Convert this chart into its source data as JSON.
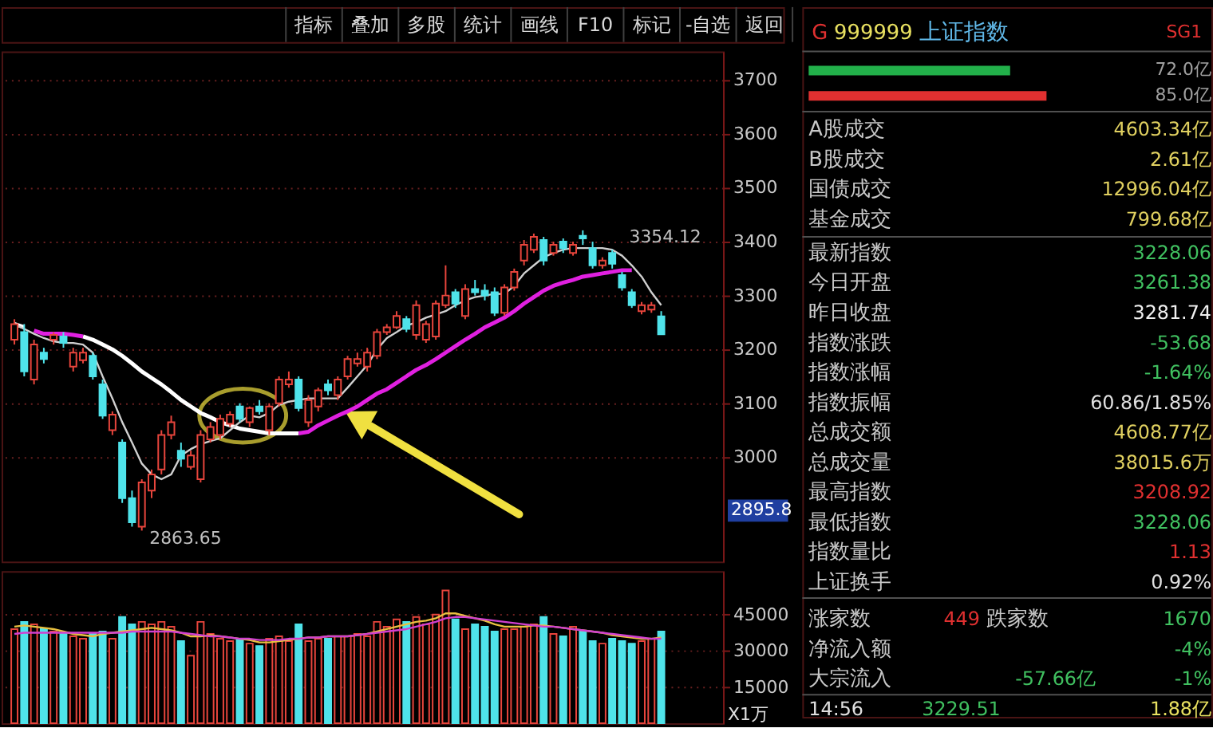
{
  "chart_data": [
    {
      "type": "other",
      "categories": [
        "指标",
        "叠加",
        "多股",
        "统计",
        "画线",
        "F10",
        "标记",
        "-自选",
        "返回"
      ]
    },
    {
      "type": "candlestick",
      "categories": [
        null,
        null,
        null,
        null,
        null,
        null,
        null,
        null,
        null,
        null,
        null,
        null,
        null,
        null,
        null,
        null,
        null,
        null,
        null,
        null,
        null,
        null,
        null,
        null,
        null,
        null,
        null,
        null,
        null,
        null,
        null,
        null,
        null,
        null,
        null,
        null,
        null,
        null,
        null,
        null,
        null,
        null,
        null,
        null,
        null,
        null,
        null,
        null,
        null,
        null,
        null,
        null,
        null,
        null,
        null,
        null,
        null,
        null,
        null,
        null,
        null,
        null,
        null,
        null,
        null,
        null,
        null
      ],
      "ohlc": [
        [
          3218,
          3256,
          3209,
          3247
        ],
        [
          3232,
          3247,
          3150,
          3159
        ],
        [
          3144,
          3218,
          3135,
          3209
        ],
        [
          3194,
          3203,
          3174,
          3182
        ],
        [
          3218,
          3232,
          3209,
          3227
        ],
        [
          3224,
          3232,
          3203,
          3212
        ],
        [
          3168,
          3203,
          3159,
          3194
        ],
        [
          3180,
          3203,
          3174,
          3194
        ],
        [
          3188,
          3194,
          3144,
          3150
        ],
        [
          3135,
          3144,
          3071,
          3077
        ],
        [
          3050,
          3085,
          3041,
          3079
        ],
        [
          3027,
          3033,
          2915,
          2924
        ],
        [
          2924,
          2938,
          2871,
          2879
        ],
        [
          2871,
          2959,
          2863.65,
          2953
        ],
        [
          2938,
          2977,
          2924,
          2968
        ],
        [
          2977,
          3050,
          2968,
          3041
        ],
        [
          3041,
          3077,
          3033,
          3065
        ],
        [
          3012,
          3027,
          2982,
          2997
        ],
        [
          2982,
          3012,
          2977,
          3003
        ],
        [
          2959,
          3050,
          2953,
          3041
        ],
        [
          3033,
          3065,
          3027,
          3056
        ],
        [
          3041,
          3079,
          3033,
          3071
        ],
        [
          3062,
          3085,
          3056,
          3079
        ],
        [
          3094,
          3100,
          3065,
          3071
        ],
        [
          3065,
          3094,
          3056,
          3091
        ],
        [
          3094,
          3106,
          3079,
          3085
        ],
        [
          3050,
          3100,
          3041,
          3094
        ],
        [
          3100,
          3150,
          3094,
          3144
        ],
        [
          3135,
          3159,
          3129,
          3144
        ],
        [
          3144,
          3150,
          3085,
          3091
        ],
        [
          3065,
          3115,
          3056,
          3106
        ],
        [
          3094,
          3129,
          3085,
          3124
        ],
        [
          3135,
          3144,
          3115,
          3124
        ],
        [
          3115,
          3150,
          3106,
          3144
        ],
        [
          3150,
          3188,
          3144,
          3182
        ],
        [
          3174,
          3194,
          3168,
          3182
        ],
        [
          3168,
          3203,
          3159,
          3194
        ],
        [
          3188,
          3238,
          3182,
          3232
        ],
        [
          3232,
          3247,
          3227,
          3241
        ],
        [
          3241,
          3271,
          3238,
          3262
        ],
        [
          3256,
          3262,
          3232,
          3238
        ],
        [
          3227,
          3291,
          3218,
          3282
        ],
        [
          3218,
          3253,
          3212,
          3247
        ],
        [
          3224,
          3291,
          3218,
          3285
        ],
        [
          3282,
          3356,
          3277,
          3300
        ],
        [
          3306,
          3312,
          3277,
          3285
        ],
        [
          3262,
          3321,
          3256,
          3312
        ],
        [
          3312,
          3329,
          3300,
          3306
        ],
        [
          3309,
          3321,
          3291,
          3300
        ],
        [
          3306,
          3315,
          3262,
          3268
        ],
        [
          3268,
          3321,
          3262,
          3315
        ],
        [
          3315,
          3350,
          3309,
          3344
        ],
        [
          3365,
          3403,
          3356,
          3394
        ],
        [
          3385,
          3415,
          3379,
          3409
        ],
        [
          3403,
          3409,
          3356,
          3365
        ],
        [
          3379,
          3400,
          3374,
          3394
        ],
        [
          3400,
          3406,
          3379,
          3388
        ],
        [
          3379,
          3400,
          3374,
          3394
        ],
        [
          3411,
          3421,
          3394,
          3406
        ],
        [
          3388,
          3400,
          3350,
          3356
        ],
        [
          3356,
          3371,
          3350,
          3365
        ],
        [
          3379,
          3385,
          3350,
          3359
        ],
        [
          3338,
          3344,
          3309,
          3315
        ],
        [
          3306,
          3312,
          3277,
          3282
        ],
        [
          3271,
          3288,
          3265,
          3282
        ],
        [
          3274,
          3288,
          3268,
          3282
        ],
        [
          3261.38,
          3271,
          3228.06,
          3228.06
        ]
      ],
      "colors": [
        "#e8453c",
        "#4fe3ea",
        "#e8453c",
        "#4fe3ea",
        "#e8453c",
        "#4fe3ea",
        "#e8453c",
        "#e8453c",
        "#4fe3ea",
        "#4fe3ea",
        "#e8453c",
        "#4fe3ea",
        "#4fe3ea",
        "#e8453c",
        "#e8453c",
        "#e8453c",
        "#e8453c",
        "#4fe3ea",
        "#e8453c",
        "#e8453c",
        "#e8453c",
        "#e8453c",
        "#e8453c",
        "#4fe3ea",
        "#e8453c",
        "#4fe3ea",
        "#e8453c",
        "#e8453c",
        "#e8453c",
        "#4fe3ea",
        "#e8453c",
        "#e8453c",
        "#4fe3ea",
        "#e8453c",
        "#e8453c",
        "#e8453c",
        "#e8453c",
        "#e8453c",
        "#e8453c",
        "#e8453c",
        "#4fe3ea",
        "#e8453c",
        "#e8453c",
        "#e8453c",
        "#e8453c",
        "#4fe3ea",
        "#e8453c",
        "#4fe3ea",
        "#4fe3ea",
        "#4fe3ea",
        "#e8453c",
        "#e8453c",
        "#e8453c",
        "#e8453c",
        "#4fe3ea",
        "#e8453c",
        "#4fe3ea",
        "#e8453c",
        "#4fe3ea",
        "#4fe3ea",
        "#e8453c",
        "#4fe3ea",
        "#4fe3ea",
        "#4fe3ea",
        "#e8453c",
        "#e8453c",
        "#4fe3ea"
      ],
      "series": [
        {
          "type": "line",
          "color": "#ffffff",
          "values": [
            3247,
            3241,
            null,
            null,
            null,
            null,
            null,
            3224,
            3218,
            3209,
            3200,
            3188,
            3174,
            3159,
            3147,
            3135,
            3121,
            3106,
            3094,
            3082,
            3074,
            3065,
            3059,
            3053,
            3050,
            3047,
            3044,
            3044,
            3044,
            3044,
            null,
            null,
            null,
            null,
            null,
            null,
            null,
            null,
            null,
            null,
            null,
            null,
            null,
            null,
            null,
            null,
            null,
            null,
            null,
            null,
            null,
            null,
            null,
            null,
            null,
            null,
            null,
            null,
            null,
            null,
            null,
            null,
            null,
            null,
            null,
            null,
            null
          ]
        },
        {
          "type": "line",
          "color": "#e020e0",
          "values": [
            null,
            null,
            3235,
            3229,
            3229,
            3229,
            3227,
            3224,
            null,
            null,
            null,
            null,
            null,
            null,
            null,
            null,
            null,
            null,
            null,
            null,
            null,
            null,
            null,
            null,
            null,
            null,
            null,
            null,
            null,
            3044,
            3047,
            3059,
            3068,
            3077,
            3085,
            3094,
            3106,
            3118,
            3126,
            3138,
            3150,
            3162,
            3171,
            3182,
            3194,
            3206,
            3218,
            3229,
            3241,
            3250,
            3259,
            3271,
            3285,
            3297,
            3309,
            3318,
            3324,
            3329,
            3335,
            3338,
            3341,
            3344,
            3347,
            3347,
            null,
            null,
            null
          ]
        },
        {
          "type": "line",
          "color": "#d0d0d0",
          "values": [
            3247,
            3238,
            3229,
            3221,
            3215,
            3212,
            3212,
            3209,
            3194,
            3150,
            3109,
            3065,
            3027,
            2988,
            2968,
            2959,
            2968,
            3003,
            3015,
            3024,
            3030,
            3035,
            3050,
            3065,
            3077,
            3074,
            3082,
            3097,
            3103,
            3106,
            3109,
            3109,
            3109,
            3109,
            3129,
            3150,
            3171,
            3200,
            3221,
            3232,
            3244,
            3250,
            3259,
            3265,
            3271,
            3282,
            3291,
            3297,
            3300,
            3303,
            3303,
            3318,
            3341,
            3356,
            3371,
            3379,
            3385,
            3388,
            3388,
            3388,
            3388,
            3385,
            3374,
            3356,
            3335,
            3306,
            3282
          ]
        }
      ],
      "ylim": [
        2806,
        3753
      ],
      "yticks": [
        3000,
        3100,
        3200,
        3300,
        3400,
        3500,
        3600,
        3700
      ],
      "grid": "y",
      "tick_labels": "y",
      "annotations": [
        "3354.12",
        "2863.65",
        "2895.8"
      ]
    },
    {
      "type": "bar",
      "categories": [
        null,
        null,
        null,
        null,
        null,
        null,
        null,
        null,
        null,
        null,
        null,
        null,
        null,
        null,
        null,
        null,
        null,
        null,
        null,
        null,
        null,
        null,
        null,
        null,
        null,
        null,
        null,
        null,
        null,
        null,
        null,
        null,
        null,
        null,
        null,
        null,
        null,
        null,
        null,
        null,
        null,
        null,
        null,
        null,
        null,
        null,
        null,
        null,
        null,
        null,
        null,
        null,
        null,
        null,
        null,
        null,
        null,
        null,
        null,
        null,
        null,
        null,
        null,
        null,
        null,
        null,
        null
      ],
      "values": [
        39000,
        42000,
        41000,
        39000,
        38000,
        37000,
        36000,
        35000,
        37000,
        38000,
        35000,
        44000,
        41000,
        42000,
        41000,
        42000,
        40000,
        34000,
        28000,
        42000,
        37000,
        35000,
        34000,
        35000,
        33000,
        32000,
        35000,
        36000,
        34000,
        41000,
        34000,
        35000,
        35000,
        36000,
        36000,
        37000,
        36000,
        42000,
        40000,
        43000,
        42000,
        44000,
        41000,
        45000,
        55000,
        43000,
        39000,
        41000,
        40000,
        38000,
        39000,
        39000,
        40000,
        41000,
        44000,
        37000,
        36000,
        40000,
        38000,
        34000,
        33000,
        35000,
        34000,
        33000,
        34000,
        35000,
        38000
      ],
      "colors": [
        "#e8453c",
        "#4fe3ea",
        "#e8453c",
        "#4fe3ea",
        "#e8453c",
        "#4fe3ea",
        "#e8453c",
        "#e8453c",
        "#4fe3ea",
        "#4fe3ea",
        "#e8453c",
        "#4fe3ea",
        "#4fe3ea",
        "#e8453c",
        "#e8453c",
        "#e8453c",
        "#e8453c",
        "#4fe3ea",
        "#e8453c",
        "#e8453c",
        "#e8453c",
        "#e8453c",
        "#e8453c",
        "#4fe3ea",
        "#e8453c",
        "#4fe3ea",
        "#e8453c",
        "#e8453c",
        "#e8453c",
        "#4fe3ea",
        "#e8453c",
        "#e8453c",
        "#4fe3ea",
        "#e8453c",
        "#e8453c",
        "#e8453c",
        "#e8453c",
        "#e8453c",
        "#e8453c",
        "#e8453c",
        "#4fe3ea",
        "#e8453c",
        "#e8453c",
        "#e8453c",
        "#e8453c",
        "#4fe3ea",
        "#e8453c",
        "#4fe3ea",
        "#4fe3ea",
        "#4fe3ea",
        "#e8453c",
        "#e8453c",
        "#e8453c",
        "#e8453c",
        "#4fe3ea",
        "#e8453c",
        "#4fe3ea",
        "#e8453c",
        "#4fe3ea",
        "#4fe3ea",
        "#e8453c",
        "#4fe3ea",
        "#4fe3ea",
        "#4fe3ea",
        "#e8453c",
        "#e8453c",
        "#4fe3ea"
      ],
      "series": [
        {
          "type": "line",
          "color": "#e8c040",
          "values": [
            40000,
            40500,
            40000,
            39500,
            39000,
            38000,
            37000,
            36500,
            36000,
            37000,
            37500,
            38000,
            38500,
            39000,
            39500,
            39000,
            38500,
            37500,
            36000,
            36000,
            36500,
            36000,
            35500,
            35000,
            34500,
            33500,
            33500,
            34000,
            34500,
            35000,
            35500,
            35500,
            36000,
            36000,
            36000,
            36500,
            37000,
            38000,
            39000,
            40000,
            41000,
            42000,
            42500,
            43500,
            45500,
            45500,
            44500,
            43500,
            42500,
            41000,
            40000,
            40000,
            40000,
            40500,
            40500,
            40000,
            39500,
            39000,
            38500,
            38000,
            37500,
            36500,
            36000,
            35500,
            35000,
            35000,
            35500
          ]
        },
        {
          "type": "line",
          "color": "#d040d0",
          "values": [
            37000,
            37500,
            37500,
            37500,
            37500,
            37500,
            37500,
            37500,
            37500,
            37500,
            37500,
            37500,
            38000,
            38000,
            38000,
            38000,
            38000,
            37500,
            37000,
            36500,
            36000,
            36000,
            35500,
            35000,
            35000,
            34500,
            34500,
            34500,
            35000,
            35000,
            35500,
            35500,
            36000,
            36000,
            36000,
            36500,
            37000,
            37500,
            38000,
            38500,
            39000,
            40000,
            41000,
            42000,
            43500,
            44000,
            44000,
            43500,
            43000,
            42500,
            42000,
            41500,
            41000,
            40500,
            40000,
            40000,
            39500,
            39000,
            38500,
            38000,
            37500,
            37000,
            36500,
            36000,
            35500,
            35000,
            35000
          ]
        }
      ],
      "ylabel": "X1万",
      "ylim": [
        0,
        63000
      ],
      "yticks": [
        15000,
        30000,
        45000
      ],
      "grid": "y",
      "tick_labels": "y"
    },
    {
      "type": "other",
      "colors": [
        "#e0d060",
        "#e0d060",
        "#e0d060",
        "#e0d060",
        "#40c060",
        "#40c060",
        "#f0f0f0",
        "#40c060",
        "#40c060",
        "#e0e0e0",
        "#e0d060",
        "#e0d060",
        "#e03030",
        "#40c060",
        "#e03030",
        "#e0e0e0"
      ],
      "annotations": [
        "G",
        "999999",
        "上证指数",
        "SG1",
        "A股成交",
        "4603.34亿",
        "B股成交",
        "2.61亿",
        "国债成交",
        "12996.04亿",
        "基金成交",
        "799.68亿",
        "最新指数",
        "3228.06",
        "今日开盘",
        "3261.38",
        "昨日收盘",
        "3281.74",
        "指数涨跌",
        "-53.68",
        "指数涨幅",
        "-1.64%",
        "指数振幅",
        "60.86/1.85%",
        "总成交额",
        "4608.77亿",
        "总成交量",
        "38015.6万",
        "最高指数",
        "3208.92",
        "最低指数",
        "3228.06",
        "指数量比",
        "1.13",
        "上证换手",
        "0.92%",
        "涨家数",
        "449",
        "跌家数",
        "1670",
        "净流入额",
        "-4%",
        "大宗流入",
        "-57.66亿",
        "-1%",
        "14:56",
        "3229.51",
        "1.88亿"
      ]
    },
    {
      "type": "bar",
      "orientation": "horizontal",
      "categories": [
        null,
        null
      ],
      "values": [
        72.0,
        85.0
      ],
      "colors": [
        "#22b04a",
        "#e03030"
      ],
      "value_labels": [
        "72.0亿",
        "85.0亿"
      ]
    }
  ]
}
